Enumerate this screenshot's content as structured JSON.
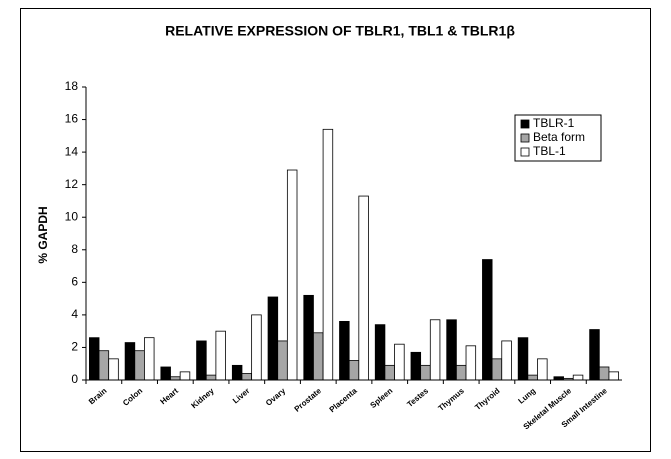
{
  "chart_data": {
    "type": "bar",
    "title": "RELATIVE EXPRESSION OF TBLR1, TBL1  & TBLR1β",
    "y_label": "% GAPDH",
    "categories": [
      "Brain",
      "Colon",
      "Heart",
      "Kidney",
      "Liver",
      "Ovary",
      "Prostate",
      "Placenta",
      "Spleen",
      "Testes",
      "Thymus",
      "Thyroid",
      "Lung",
      "Skeletal Muscle",
      "Small Intestine"
    ],
    "series": [
      {
        "name": "TBLR-1",
        "color": "#000000",
        "values": [
          2.6,
          2.3,
          0.8,
          2.4,
          0.9,
          5.1,
          5.2,
          3.6,
          3.4,
          1.7,
          3.7,
          7.4,
          2.6,
          0.2,
          3.1
        ]
      },
      {
        "name": "Beta form",
        "color": "#a6a6a6",
        "values": [
          1.8,
          1.8,
          0.2,
          0.3,
          0.4,
          2.4,
          2.9,
          1.2,
          0.9,
          0.9,
          0.9,
          1.3,
          0.3,
          0.1,
          0.8
        ]
      },
      {
        "name": "TBL-1",
        "color": "#ffffff",
        "values": [
          1.3,
          2.6,
          0.5,
          3.0,
          4.0,
          12.9,
          15.4,
          11.3,
          2.2,
          3.7,
          2.1,
          2.4,
          1.3,
          0.3,
          0.5
        ]
      }
    ],
    "ylim": [
      0,
      18
    ],
    "yticks": [
      0,
      2,
      4,
      6,
      8,
      10,
      12,
      14,
      16,
      18
    ],
    "legend": "top-right"
  }
}
